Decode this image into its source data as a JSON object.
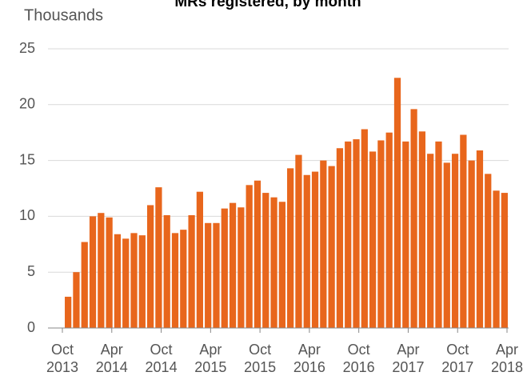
{
  "chart_data": {
    "type": "bar",
    "title": "MRs registered, by month",
    "y_label": "Thousands",
    "color": "#e8661c",
    "values": [
      2.8,
      5.0,
      7.7,
      10.0,
      10.3,
      9.9,
      8.4,
      8.0,
      8.5,
      8.3,
      11.0,
      12.6,
      10.1,
      8.5,
      8.8,
      10.1,
      12.2,
      9.4,
      9.4,
      10.7,
      11.2,
      10.8,
      12.8,
      13.2,
      12.1,
      11.7,
      11.3,
      14.3,
      15.5,
      13.7,
      14.0,
      15.0,
      14.5,
      16.1,
      16.7,
      16.9,
      17.8,
      15.8,
      16.8,
      17.5,
      22.4,
      16.7,
      19.6,
      17.6,
      15.6,
      16.7,
      14.8,
      15.6,
      17.3,
      15.0,
      15.9,
      13.8,
      12.3,
      12.1
    ],
    "xtick_labels": [
      "Oct 2013",
      "Apr 2014",
      "Oct 2014",
      "Apr 2015",
      "Oct 2015",
      "Apr 2016",
      "Oct 2016",
      "Apr 2017",
      "Oct 2017",
      "Apr 2018"
    ],
    "ylim": [
      0,
      25
    ],
    "yticks": [
      0,
      5,
      10,
      15,
      20,
      25
    ],
    "grid": true
  }
}
